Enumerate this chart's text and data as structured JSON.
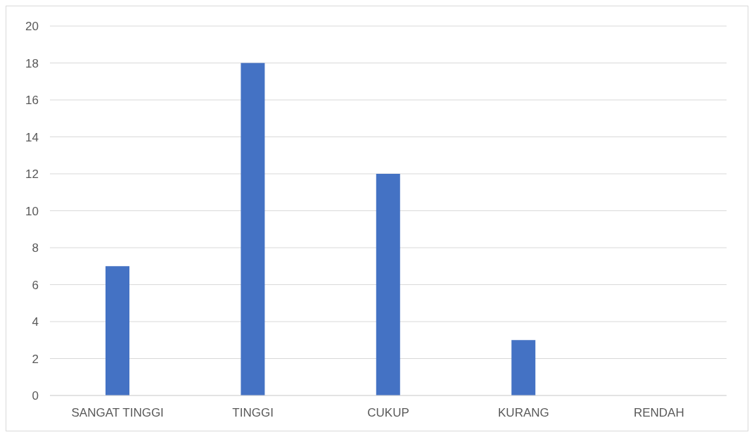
{
  "chart_data": {
    "type": "bar",
    "categories": [
      "SANGAT TINGGI",
      "TINGGI",
      "CUKUP",
      "KURANG",
      "RENDAH"
    ],
    "values": [
      7,
      18,
      12,
      3,
      0
    ],
    "color": "#4472c4",
    "ylim": [
      0,
      20
    ],
    "yticks": [
      0,
      2,
      4,
      6,
      8,
      10,
      12,
      14,
      16,
      18,
      20
    ],
    "grid": "y"
  }
}
